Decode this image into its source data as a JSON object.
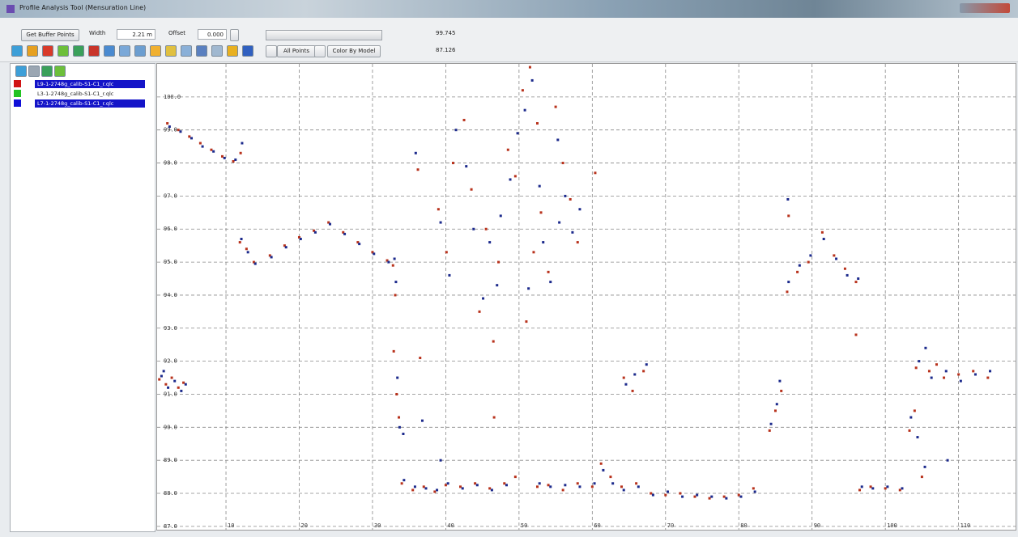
{
  "window": {
    "title": "Profile Analysis Tool (Mensuration Line)"
  },
  "toolbar": {
    "buffer_button": "Get Buffer Points",
    "width_label": "Width",
    "width_value": "2.21 m",
    "offset_label": "Offset",
    "offset_value": "0.000",
    "max_value": "99.745",
    "min_value": "87.126",
    "points_filter": "All Points",
    "color_mode": "Color By Model"
  },
  "layers": [
    {
      "label": "L9-1-2748g_calib-S1-C1_r.qlc",
      "color": "#d01414",
      "selected": true
    },
    {
      "label": "L3-1-2748g_calib-S1-C1_r.qlc",
      "color": "#22c322",
      "selected": false
    },
    {
      "label": "L7-1-2748g_calib-S1-C1_r.qlc",
      "color": "#1010d8",
      "selected": true
    }
  ],
  "chart_data": {
    "type": "scatter",
    "xlim": [
      0.6,
      118
    ],
    "ylim": [
      86.85,
      101.0
    ],
    "xticks": [
      10,
      20,
      30,
      40,
      50,
      60,
      70,
      80,
      90,
      100,
      110
    ],
    "yticks": [
      {
        "value": 87,
        "label": "87.0"
      },
      {
        "value": 88,
        "label": "88.0"
      },
      {
        "value": 89,
        "label": "89.0"
      },
      {
        "value": 90,
        "label": "90.0"
      },
      {
        "value": 91,
        "label": "91.0"
      },
      {
        "value": 92,
        "label": "92.0"
      },
      {
        "value": 93,
        "label": "93.0"
      },
      {
        "value": 94,
        "label": "94.0"
      },
      {
        "value": 95,
        "label": "95.0"
      },
      {
        "value": 96,
        "label": "96.0"
      },
      {
        "value": 97,
        "label": "97.0"
      },
      {
        "value": 98,
        "label": "98.0"
      },
      {
        "value": 99,
        "label": "99.0"
      },
      {
        "value": 100,
        "label": "100.0"
      }
    ],
    "grid": true,
    "series": [
      {
        "color": "#b8321c",
        "x": [
          0.9,
          1.8,
          2.6,
          3.5,
          4.2,
          2.0,
          3.5,
          5.0,
          6.5,
          8.0,
          9.5,
          11.0,
          12.0,
          11.9,
          12.8,
          13.8,
          16,
          18,
          20,
          22,
          24,
          26,
          28,
          30,
          32,
          32.8,
          33.1,
          32.9,
          33.3,
          33.6,
          34,
          35.5,
          37,
          38.5,
          40,
          42,
          44,
          46,
          48,
          49.5,
          36.2,
          36.5,
          39,
          40.1,
          41,
          42.5,
          43.5,
          44.6,
          45.5,
          46.5,
          47.2,
          46.6,
          48.5,
          49.5,
          50.5,
          51.5,
          52.5,
          53,
          54,
          55,
          56,
          57,
          58,
          51,
          52,
          60.4,
          52.5,
          54,
          56,
          58,
          60,
          61.2,
          62.5,
          64,
          66,
          64.3,
          65.5,
          67,
          68,
          70,
          72,
          74,
          76,
          78,
          80,
          82,
          84.2,
          85.0,
          85.8,
          86.6,
          88,
          89.5,
          91.4,
          93,
          94.5,
          96.0,
          96,
          86.8,
          96.5,
          98,
          100,
          102,
          103.3,
          104,
          105,
          104.2,
          106,
          108,
          110,
          112,
          114,
          107
        ],
        "values": [
          91.45,
          91.3,
          91.5,
          91.2,
          91.35,
          99.2,
          99.0,
          98.8,
          98.6,
          98.4,
          98.2,
          98.05,
          98.3,
          95.6,
          95.4,
          95.0,
          95.2,
          95.5,
          95.75,
          95.95,
          96.2,
          95.9,
          95.6,
          95.3,
          95.05,
          94.9,
          94.0,
          92.3,
          91.0,
          90.3,
          88.3,
          88.1,
          88.2,
          88.05,
          88.25,
          88.2,
          88.3,
          88.15,
          88.3,
          88.5,
          97.8,
          92.1,
          96.6,
          95.3,
          98.0,
          99.3,
          97.2,
          93.5,
          96.0,
          92.6,
          95.0,
          90.3,
          98.4,
          97.6,
          100.2,
          100.9,
          99.2,
          96.5,
          94.7,
          99.7,
          98.0,
          96.9,
          95.6,
          93.2,
          95.3,
          97.7,
          88.2,
          88.25,
          88.1,
          88.3,
          88.2,
          88.9,
          88.5,
          88.2,
          88.3,
          91.5,
          91.1,
          91.7,
          88.0,
          87.95,
          88.0,
          87.9,
          87.85,
          87.9,
          87.95,
          88.15,
          89.9,
          90.5,
          91.1,
          94.1,
          94.7,
          95.0,
          95.9,
          95.2,
          94.8,
          94.4,
          92.8,
          96.4,
          88.1,
          88.2,
          88.15,
          88.1,
          89.9,
          90.5,
          88.5,
          91.8,
          91.7,
          91.5,
          91.6,
          91.7,
          91.5,
          91.9
        ]
      },
      {
        "color": "#1c2a8c",
        "x": [
          1.2,
          2.1,
          3.0,
          3.9,
          4.5,
          1.5,
          2.3,
          3.8,
          5.3,
          6.8,
          8.3,
          9.8,
          11.3,
          12.2,
          12.1,
          13,
          14,
          16.2,
          18.2,
          20.2,
          22.2,
          24.2,
          26.2,
          28.2,
          30.2,
          32.2,
          33,
          33.2,
          33.4,
          33.7,
          34.2,
          34.3,
          35.8,
          37.3,
          38.8,
          40.3,
          42.3,
          44.3,
          46.3,
          48.3,
          39.3,
          35.9,
          36.8,
          39.3,
          40.5,
          41.4,
          42.8,
          43.8,
          45.1,
          46,
          47,
          47.5,
          48.8,
          49.8,
          50.8,
          51.8,
          52.8,
          53.3,
          54.3,
          55.3,
          56.3,
          57.3,
          58.3,
          51.3,
          55.5,
          52.8,
          54.3,
          56.3,
          58.3,
          60.3,
          61.5,
          62.8,
          64.3,
          66.3,
          64.6,
          65.8,
          67.4,
          68.3,
          70.3,
          72.3,
          74.3,
          76.3,
          78.3,
          80.3,
          82.2,
          84.4,
          85.2,
          85.6,
          86.8,
          88.3,
          89.8,
          91.6,
          93.3,
          94.8,
          96.3,
          86.7,
          96.8,
          98.3,
          100.3,
          102.3,
          103.5,
          104.4,
          105.4,
          104.6,
          106.3,
          108.3,
          110.3,
          112.3,
          114.3,
          105.5,
          108.5
        ],
        "values": [
          91.55,
          91.2,
          91.4,
          91.1,
          91.3,
          91.7,
          99.1,
          98.95,
          98.75,
          98.5,
          98.35,
          98.15,
          98.1,
          98.6,
          95.7,
          95.3,
          94.95,
          95.15,
          95.45,
          95.7,
          95.9,
          96.15,
          95.85,
          95.55,
          95.25,
          95.0,
          95.1,
          94.4,
          91.5,
          90.0,
          89.8,
          88.4,
          88.2,
          88.15,
          88.1,
          88.3,
          88.15,
          88.25,
          88.1,
          88.25,
          89.0,
          98.3,
          90.2,
          96.2,
          94.6,
          99.0,
          97.9,
          96.0,
          93.9,
          95.6,
          94.3,
          96.4,
          97.5,
          98.9,
          99.6,
          100.5,
          97.3,
          95.6,
          94.4,
          98.7,
          97.0,
          95.9,
          96.6,
          94.2,
          96.2,
          88.3,
          88.2,
          88.25,
          88.2,
          88.3,
          88.7,
          88.3,
          88.1,
          88.2,
          91.3,
          91.6,
          91.9,
          87.95,
          88.05,
          87.9,
          87.95,
          87.9,
          87.85,
          87.9,
          88.05,
          90.1,
          90.7,
          91.4,
          94.4,
          94.9,
          95.2,
          95.7,
          95.1,
          94.6,
          94.5,
          96.9,
          88.2,
          88.15,
          88.2,
          88.15,
          90.3,
          89.7,
          88.8,
          92.0,
          91.5,
          91.7,
          91.4,
          91.6,
          91.7,
          92.4,
          89.0
        ]
      }
    ]
  }
}
